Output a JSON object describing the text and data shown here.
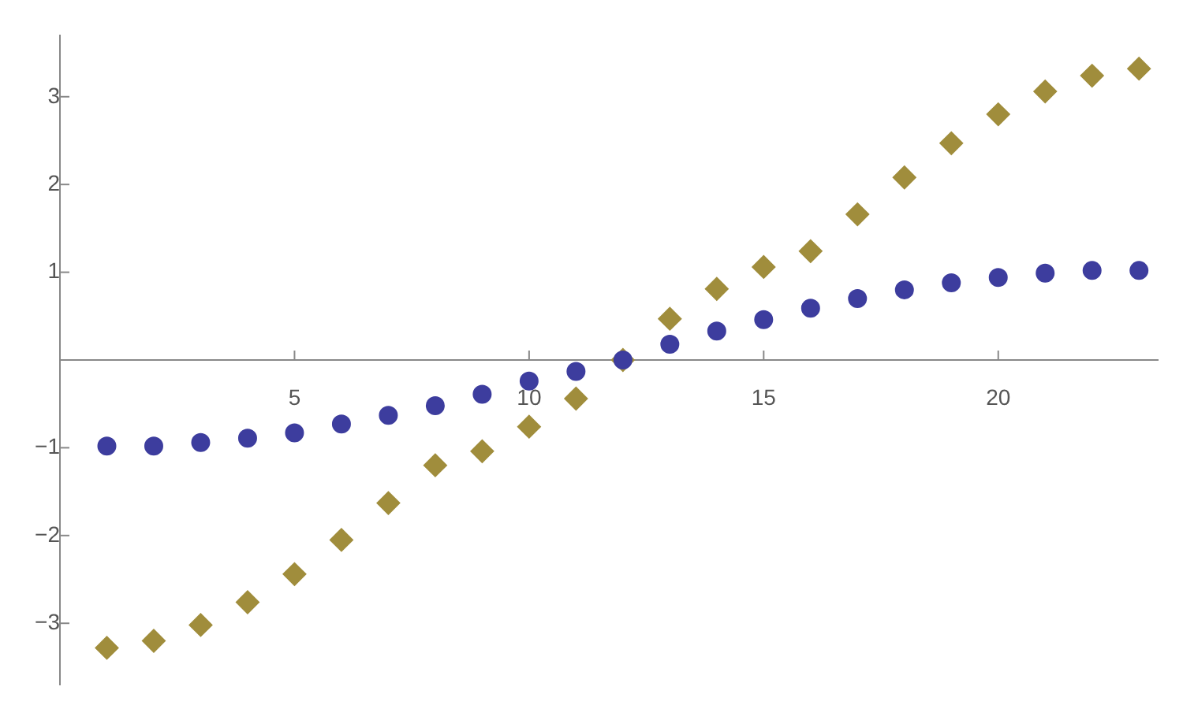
{
  "chart_data": {
    "type": "scatter",
    "x": [
      1,
      2,
      3,
      4,
      5,
      6,
      7,
      8,
      9,
      10,
      11,
      12,
      13,
      14,
      15,
      16,
      17,
      18,
      19,
      20,
      21,
      22,
      23
    ],
    "series": [
      {
        "color": "#3d3d9e",
        "marker": "circle",
        "values": [
          -0.98,
          -0.98,
          -0.94,
          -0.89,
          -0.83,
          -0.73,
          -0.63,
          -0.52,
          -0.39,
          -0.24,
          -0.13,
          0,
          0.18,
          0.33,
          0.46,
          0.59,
          0.7,
          0.8,
          0.88,
          0.94,
          0.99,
          1.02,
          1.02
        ]
      },
      {
        "color": "#a08d3c",
        "marker": "diamond",
        "values": [
          -3.28,
          -3.2,
          -3.02,
          -2.76,
          -2.44,
          -2.05,
          -1.63,
          -1.2,
          -1.04,
          -0.76,
          -0.44,
          0,
          0.47,
          0.81,
          1.06,
          1.24,
          1.66,
          2.08,
          2.47,
          2.8,
          3.06,
          3.24,
          3.32
        ]
      }
    ],
    "xlim": [
      0,
      23.4
    ],
    "ylim": [
      -3.7,
      3.7
    ],
    "xticks": [
      5,
      10,
      15,
      20
    ],
    "yticks": [
      -3,
      -2,
      -1,
      1,
      2,
      3
    ],
    "grid": false,
    "legend": false
  }
}
